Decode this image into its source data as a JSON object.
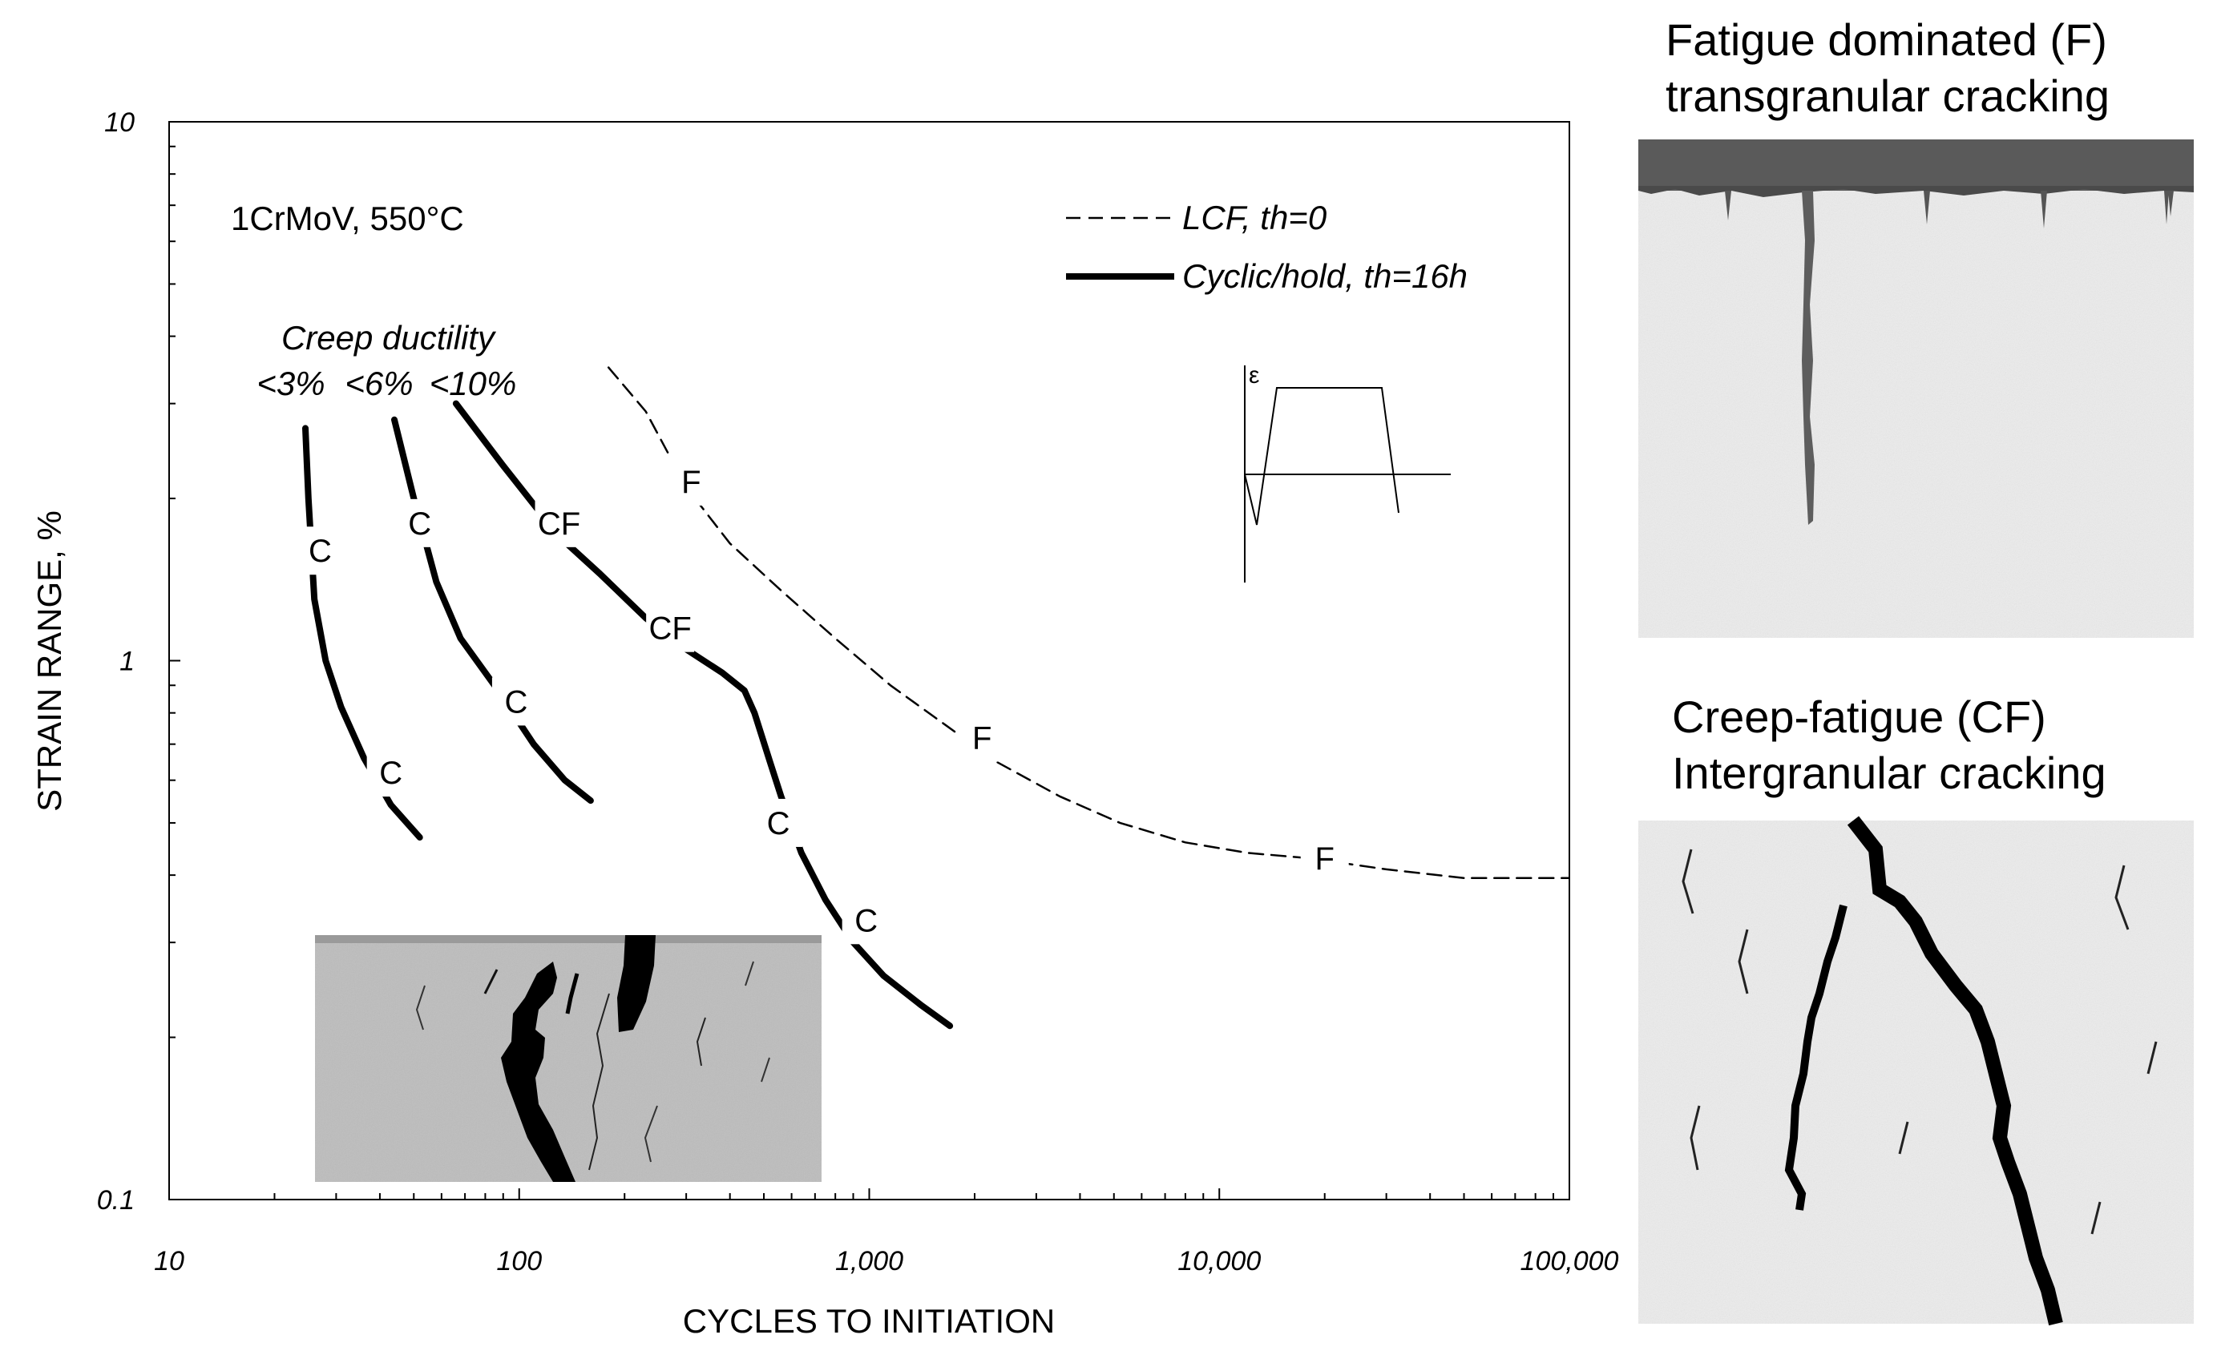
{
  "chart_data": {
    "type": "line",
    "title": "",
    "xlabel": "CYCLES TO INITIATION",
    "ylabel": "STRAIN RANGE, %",
    "xscale": "log",
    "yscale": "log",
    "xlim": [
      10,
      100000
    ],
    "ylim": [
      0.1,
      10
    ],
    "x_tick_labels": [
      "10",
      "100",
      "1,000",
      "10,000",
      "100,000"
    ],
    "y_tick_labels": [
      "10",
      "1",
      "0.1"
    ],
    "material_label": "1CrMoV, 550°C",
    "creep_ductility_title": "Creep ductility",
    "creep_ductility_levels": [
      "<3%",
      "<6%",
      "<10%"
    ],
    "legend": {
      "position": "top-right",
      "entries": [
        {
          "label": "LCF, th=0",
          "style": "dashed"
        },
        {
          "label": "Cyclic/hold, th=16h",
          "style": "thick-solid"
        }
      ]
    },
    "waveform_inset_label": "ε",
    "series": [
      {
        "legend": "LCF, th=0",
        "style": "dashed",
        "x": [
          180,
          230,
          300,
          400,
          560,
          800,
          1150,
          1650,
          2300,
          3500,
          5200,
          8000,
          12000,
          18000,
          30000,
          50000,
          100000
        ],
        "y": [
          3.5,
          2.9,
          2.1,
          1.65,
          1.35,
          1.1,
          0.9,
          0.76,
          0.65,
          0.56,
          0.5,
          0.46,
          0.44,
          0.43,
          0.41,
          0.395,
          0.395
        ],
        "annotations": [
          {
            "text": "F",
            "x": 310,
            "y": 2.15
          },
          {
            "text": "F",
            "x": 2100,
            "y": 0.72
          },
          {
            "text": "F",
            "x": 20000,
            "y": 0.43
          }
        ]
      },
      {
        "legend": "Cyclic/hold, th=16h",
        "creep_ductility": "<3%",
        "style": "thick-solid",
        "x": [
          24.5,
          25,
          26,
          28,
          31,
          36,
          43,
          52
        ],
        "y": [
          2.7,
          2.0,
          1.3,
          1.0,
          0.82,
          0.66,
          0.54,
          0.47
        ],
        "annotations": [
          {
            "text": "C",
            "x": 27,
            "y": 1.6
          },
          {
            "text": "C",
            "x": 43,
            "y": 0.62
          }
        ]
      },
      {
        "legend": "Cyclic/hold, th=16h",
        "creep_ductility": "<6%",
        "style": "thick-solid",
        "x": [
          44,
          50,
          58,
          68,
          85,
          110,
          135,
          160
        ],
        "y": [
          2.8,
          2.0,
          1.4,
          1.1,
          0.9,
          0.7,
          0.6,
          0.55
        ],
        "annotations": [
          {
            "text": "C",
            "x": 52,
            "y": 1.8
          },
          {
            "text": "C",
            "x": 98,
            "y": 0.84
          }
        ]
      },
      {
        "legend": "Cyclic/hold, th=16h",
        "creep_ductility": "<10%",
        "style": "thick-solid",
        "x": [
          66,
          90,
          130,
          170,
          230,
          300,
          380,
          440,
          470,
          520,
          560,
          640,
          750,
          900,
          1100,
          1400,
          1700
        ],
        "y": [
          3.0,
          2.3,
          1.7,
          1.45,
          1.2,
          1.05,
          0.95,
          0.88,
          0.8,
          0.65,
          0.56,
          0.44,
          0.36,
          0.3,
          0.26,
          0.23,
          0.21
        ],
        "annotations": [
          {
            "text": "CF",
            "x": 130,
            "y": 1.8
          },
          {
            "text": "CF",
            "x": 270,
            "y": 1.15
          },
          {
            "text": "C",
            "x": 550,
            "y": 0.5
          },
          {
            "text": "C",
            "x": 980,
            "y": 0.33
          }
        ]
      }
    ]
  },
  "panels": {
    "fatigue_title_line1": "Fatigue dominated (F)",
    "fatigue_title_line2": "transgranular cracking",
    "creep_title_line1": "Creep-fatigue (CF)",
    "creep_title_line2": "Intergranular cracking"
  },
  "colors": {
    "line": "#000000",
    "micrograph_background": "#e8e8e8",
    "inset_background": "#bdbdbd",
    "surface_layer": "#555555"
  }
}
